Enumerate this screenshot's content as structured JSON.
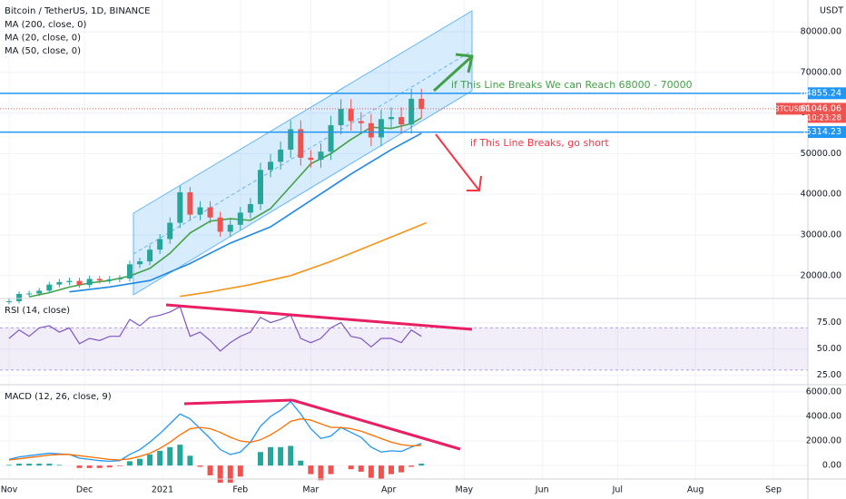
{
  "chart_data": [
    {
      "type": "candlestick",
      "title": "Bitcoin / TetherUS, 1D, BINANCE",
      "unit": "USDT",
      "x": [
        0,
        4,
        8,
        12,
        16,
        20,
        24,
        28,
        32,
        36,
        40,
        44,
        48,
        52,
        56,
        60,
        64,
        68,
        72,
        76,
        80,
        84,
        88,
        92,
        96,
        100,
        104,
        108,
        112,
        116,
        120,
        124,
        128,
        132,
        136,
        140,
        144,
        148,
        152,
        156,
        160,
        164
      ],
      "open": [
        13500,
        13700,
        15500,
        15600,
        16300,
        17800,
        18400,
        18700,
        17700,
        19200,
        18800,
        19100,
        19300,
        22800,
        23500,
        26400,
        29000,
        33000,
        40500,
        35000,
        36800,
        34300,
        30800,
        32500,
        35500,
        37600,
        46000,
        48000,
        51000,
        56000,
        49000,
        48500,
        50500,
        57000,
        61000,
        58000,
        57500,
        54000,
        58500,
        59000,
        57200,
        63500
      ],
      "high": [
        14300,
        16100,
        16300,
        17000,
        18500,
        19200,
        19500,
        19500,
        20000,
        19900,
        19900,
        20100,
        23700,
        24400,
        27500,
        30200,
        34300,
        42100,
        41800,
        38300,
        38300,
        35700,
        33800,
        36900,
        39100,
        47800,
        49900,
        53000,
        58200,
        58200,
        50900,
        52500,
        59300,
        63400,
        63400,
        60200,
        59800,
        60800,
        61400,
        61400,
        66000,
        66000
      ],
      "low": [
        12960,
        13150,
        14900,
        14980,
        15650,
        17090,
        17660,
        16990,
        16990,
        18050,
        18050,
        18340,
        18530,
        21890,
        22560,
        25340,
        27840,
        31680,
        33600,
        33600,
        32930,
        29570,
        29570,
        31200,
        34080,
        36100,
        44160,
        46080,
        48960,
        47040,
        46560,
        46560,
        48480,
        54720,
        55680,
        55200,
        51840,
        51840,
        56160,
        54910,
        54910,
        58780
      ],
      "close": [
        13700,
        15500,
        15600,
        16300,
        17800,
        18400,
        18700,
        17700,
        19200,
        18800,
        19100,
        19300,
        22800,
        23500,
        26400,
        29000,
        33000,
        40500,
        35000,
        36800,
        34300,
        30800,
        32500,
        35500,
        37600,
        46000,
        48000,
        51000,
        56000,
        49000,
        48500,
        50500,
        57000,
        61000,
        58000,
        57500,
        54000,
        58500,
        59000,
        57200,
        63500,
        61046.06
      ],
      "up_color": "#26a69a",
      "down_color": "#ef5350",
      "series": [
        {
          "name": "MA (200, close, 0)",
          "color": "#f7931a",
          "x": [
            68,
            80,
            96,
            112,
            128,
            144,
            160,
            166
          ],
          "values": [
            14900,
            16000,
            17800,
            20000,
            23500,
            27500,
            31500,
            33000
          ]
        },
        {
          "name": "MA (20, close, 0)",
          "color": "#43a047",
          "x": [
            8,
            16,
            24,
            32,
            40,
            48,
            56,
            64,
            72,
            80,
            88,
            96,
            104,
            112,
            120,
            128,
            136,
            144,
            152,
            160,
            164
          ],
          "values": [
            14800,
            15800,
            17200,
            18200,
            18800,
            19900,
            21800,
            25500,
            30500,
            33400,
            34000,
            33600,
            36500,
            42000,
            47500,
            50000,
            53500,
            56500,
            56200,
            57400,
            58800
          ]
        },
        {
          "name": "MA (50, close, 0)",
          "color": "#1e88e5",
          "x": [
            24,
            40,
            56,
            72,
            88,
            104,
            120,
            136,
            152,
            164
          ],
          "values": [
            16000,
            17200,
            18800,
            23000,
            28000,
            32000,
            38500,
            45000,
            51000,
            55000
          ]
        }
      ],
      "levels": [
        {
          "value": 64855.24,
          "color": "#2196f3"
        },
        {
          "value": 55314.23,
          "color": "#2196f3"
        }
      ],
      "last": {
        "value": 61046.06,
        "symbol": "BTCUSDT",
        "countdown": "10:23:28",
        "color": "#ef5350"
      },
      "annotations": [
        {
          "text": "if This Line Breaks We can Reach 68000 - 70000",
          "color": "#43a047"
        },
        {
          "text": "if This Line Breaks, go short",
          "color": "#f23645"
        }
      ],
      "xlim": [
        -3.6,
        317.7
      ],
      "xticks": [
        {
          "value": 0,
          "label": "Nov"
        },
        {
          "value": 30,
          "label": "Dec"
        },
        {
          "value": 61,
          "label": "2021"
        },
        {
          "value": 92,
          "label": "Feb"
        },
        {
          "value": 120,
          "label": "Mar"
        },
        {
          "value": 151,
          "label": "Apr"
        },
        {
          "value": 181,
          "label": "May"
        },
        {
          "value": 212,
          "label": "Jun"
        },
        {
          "value": 242,
          "label": "Jul"
        },
        {
          "value": 273,
          "label": "Aug"
        },
        {
          "value": 304,
          "label": "Sep"
        }
      ],
      "ylim": [
        14600,
        87800
      ],
      "yticks": [
        {
          "value": 20000,
          "label": "20000.00"
        },
        {
          "value": 30000,
          "label": "30000.00"
        },
        {
          "value": 40000,
          "label": "40000.00"
        },
        {
          "value": 50000,
          "label": "50000.00"
        },
        {
          "value": 60000,
          "label": "60000.00"
        },
        {
          "value": 70000,
          "label": "70000.00"
        },
        {
          "value": 80000,
          "label": "80000.00"
        }
      ]
    },
    {
      "type": "line",
      "title": "RSI (14, close)",
      "color": "#7e57c2",
      "x": [
        0,
        4,
        8,
        12,
        16,
        20,
        24,
        28,
        32,
        36,
        40,
        44,
        48,
        52,
        56,
        60,
        64,
        68,
        72,
        76,
        80,
        84,
        88,
        92,
        96,
        100,
        104,
        108,
        112,
        116,
        120,
        124,
        128,
        132,
        136,
        140,
        144,
        148,
        152,
        156,
        160,
        164
      ],
      "values": [
        60,
        68,
        62,
        70,
        72,
        66,
        70,
        55,
        60,
        58,
        62,
        62,
        78,
        72,
        80,
        82,
        85,
        90,
        62,
        66,
        58,
        48,
        56,
        62,
        66,
        80,
        75,
        78,
        82,
        60,
        56,
        60,
        70,
        75,
        62,
        60,
        52,
        60,
        60,
        56,
        68,
        62
      ],
      "band": [
        30,
        70
      ],
      "ylim": [
        17,
        97
      ],
      "yticks": [
        {
          "value": 25,
          "label": "25.00"
        },
        {
          "value": 50,
          "label": "50.00"
        },
        {
          "value": 75,
          "label": "75.00"
        }
      ]
    },
    {
      "type": "macd",
      "title": "MACD (12, 26, close, 9)",
      "macd_color": "#2196f3",
      "signal_color": "#ff6d00",
      "up_color": "#26a69a",
      "down_color": "#ef5350",
      "x": [
        0,
        4,
        8,
        12,
        16,
        20,
        24,
        28,
        32,
        36,
        40,
        44,
        48,
        52,
        56,
        60,
        64,
        68,
        72,
        76,
        80,
        84,
        88,
        92,
        96,
        100,
        104,
        108,
        112,
        116,
        120,
        124,
        128,
        132,
        136,
        140,
        144,
        148,
        152,
        156,
        160,
        164
      ],
      "macd": [
        500,
        700,
        800,
        900,
        1000,
        950,
        900,
        600,
        500,
        400,
        350,
        400,
        900,
        1300,
        1900,
        2600,
        3400,
        4200,
        3800,
        3000,
        2200,
        1300,
        900,
        1100,
        1900,
        3200,
        4000,
        4500,
        5200,
        4200,
        3000,
        2200,
        2400,
        3100,
        2700,
        2300,
        1500,
        1100,
        1200,
        1150,
        1500,
        1800
      ],
      "signal": [
        450,
        550,
        650,
        750,
        850,
        900,
        900,
        800,
        700,
        600,
        500,
        450,
        550,
        750,
        1000,
        1400,
        1900,
        2500,
        3000,
        3100,
        3000,
        2700,
        2300,
        2000,
        1900,
        2100,
        2500,
        3000,
        3600,
        3800,
        3700,
        3400,
        3100,
        3100,
        3000,
        2800,
        2500,
        2200,
        1900,
        1700,
        1600,
        1650
      ],
      "histogram": [
        50,
        150,
        150,
        150,
        150,
        50,
        0,
        -200,
        -200,
        -200,
        -150,
        -50,
        350,
        550,
        900,
        1200,
        1500,
        1700,
        800,
        -100,
        -800,
        -1400,
        -1400,
        -900,
        0,
        1100,
        1500,
        1500,
        1600,
        400,
        -700,
        -1200,
        -700,
        0,
        -300,
        -500,
        -1000,
        -1100,
        -700,
        -550,
        -100,
        150
      ],
      "ylim": [
        -1025,
        6510
      ],
      "yticks": [
        {
          "value": 0,
          "label": "0.00"
        },
        {
          "value": 2000,
          "label": "2000.00"
        },
        {
          "value": 4000,
          "label": "4000.00"
        },
        {
          "value": 6000,
          "label": "6000.00"
        }
      ]
    }
  ]
}
